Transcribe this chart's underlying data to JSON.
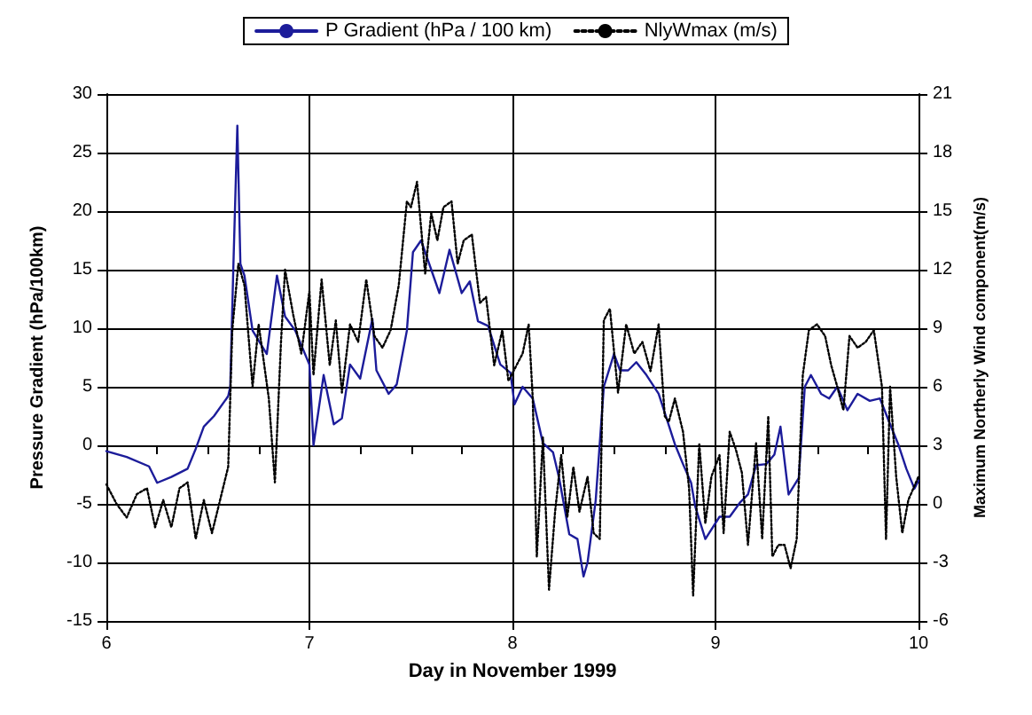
{
  "chart_data": {
    "type": "line",
    "xlabel": "Day in November 1999",
    "ylabel": "Pressure Gradient (hPa/100km)",
    "y2label": "Maximum Northerly Wind component(m/s)",
    "xlim": [
      6,
      10
    ],
    "xticks": [
      6,
      {
        "value": 6.25,
        "label": null
      },
      {
        "value": 6.5,
        "label": null
      },
      {
        "value": 6.75,
        "label": null
      },
      7,
      {
        "value": 7.25,
        "label": null
      },
      {
        "value": 7.5,
        "label": null
      },
      {
        "value": 7.75,
        "label": null
      },
      8,
      {
        "value": 8.25,
        "label": null
      },
      {
        "value": 8.5,
        "label": null
      },
      {
        "value": 8.75,
        "label": null
      },
      9,
      {
        "value": 9.25,
        "label": null
      },
      {
        "value": 9.5,
        "label": null
      },
      {
        "value": 9.75,
        "label": null
      },
      10
    ],
    "ylim": [
      -15,
      30
    ],
    "yticks": [
      -15,
      -10,
      -5,
      0,
      5,
      10,
      15,
      20,
      25,
      30
    ],
    "y2lim": [
      -6,
      21
    ],
    "y2ticks": [
      -6,
      -3,
      0,
      3,
      6,
      9,
      12,
      15,
      18,
      21
    ],
    "grid": true,
    "legend": "top",
    "marker": "none",
    "series": [
      {
        "name": "P Gradient (hPa / 100 km)",
        "color": "#1c1c9a",
        "line_style": "solid",
        "x": [
          6.0,
          6.1,
          6.21,
          6.25,
          6.32,
          6.4,
          6.44,
          6.48,
          6.53,
          6.6,
          6.61,
          6.625,
          6.645,
          6.66,
          6.68,
          6.72,
          6.79,
          6.84,
          6.88,
          6.93,
          7.0,
          7.02,
          7.07,
          7.12,
          7.16,
          7.2,
          7.25,
          7.31,
          7.33,
          7.39,
          7.43,
          7.48,
          7.51,
          7.55,
          7.6,
          7.64,
          7.69,
          7.75,
          7.79,
          7.83,
          7.88,
          7.94,
          7.99,
          8.01,
          8.05,
          8.1,
          8.15,
          8.2,
          8.23,
          8.28,
          8.32,
          8.35,
          8.37,
          8.41,
          8.45,
          8.5,
          8.53,
          8.57,
          8.61,
          8.66,
          8.72,
          8.8,
          8.84,
          8.88,
          8.9,
          8.95,
          9.02,
          9.07,
          9.12,
          9.16,
          9.2,
          9.25,
          9.29,
          9.32,
          9.36,
          9.41,
          9.44,
          9.47,
          9.52,
          9.56,
          9.6,
          9.65,
          9.7,
          9.76,
          9.81,
          9.86,
          9.9,
          9.94,
          9.98,
          10.0
        ],
        "values": [
          -0.5,
          -1,
          -1.8,
          -3.2,
          -2.7,
          -2,
          -0.3,
          1.6,
          2.5,
          4.2,
          5,
          15,
          27.3,
          15.5,
          14.5,
          9.8,
          7.8,
          14.5,
          11,
          9.8,
          6.9,
          0,
          6,
          1.8,
          2.3,
          6.9,
          5.7,
          10.8,
          6.4,
          4.4,
          5.2,
          9.8,
          16.5,
          17.5,
          15,
          13,
          16.7,
          13,
          14,
          10.6,
          10.2,
          6.9,
          6.2,
          3.5,
          5,
          4,
          0.2,
          -0.6,
          -2.8,
          -7.6,
          -8,
          -11.2,
          -10,
          -4.7,
          5,
          7.8,
          6.4,
          6.4,
          7.1,
          6,
          4.4,
          0.1,
          -1.6,
          -3.2,
          -5.2,
          -8,
          -6.1,
          -6.1,
          -4.9,
          -4.2,
          -1.7,
          -1.6,
          -0.8,
          1.6,
          -4.2,
          -2.8,
          5,
          6,
          4.4,
          4,
          5,
          3,
          4.4,
          3.8,
          4,
          1.8,
          0.1,
          -2,
          -3.7,
          -3
        ]
      },
      {
        "name": "NlyWmax (m/s)",
        "color": "#000000",
        "line_style": "dotted",
        "axis": "y2",
        "x": [
          6.0,
          6.05,
          6.1,
          6.15,
          6.2,
          6.24,
          6.28,
          6.32,
          6.36,
          6.4,
          6.44,
          6.48,
          6.52,
          6.56,
          6.6,
          6.62,
          6.65,
          6.68,
          6.72,
          6.75,
          6.8,
          6.83,
          6.86,
          6.88,
          6.92,
          6.96,
          7.0,
          7.02,
          7.06,
          7.1,
          7.13,
          7.16,
          7.2,
          7.24,
          7.28,
          7.32,
          7.36,
          7.4,
          7.44,
          7.48,
          7.5,
          7.53,
          7.57,
          7.6,
          7.63,
          7.66,
          7.7,
          7.73,
          7.76,
          7.8,
          7.84,
          7.87,
          7.91,
          7.95,
          7.98,
          8.02,
          8.05,
          8.08,
          8.1,
          8.12,
          8.15,
          8.18,
          8.21,
          8.24,
          8.27,
          8.3,
          8.33,
          8.37,
          8.4,
          8.43,
          8.45,
          8.48,
          8.52,
          8.56,
          8.6,
          8.64,
          8.68,
          8.72,
          8.75,
          8.77,
          8.8,
          8.84,
          8.87,
          8.89,
          8.92,
          8.95,
          8.98,
          9.02,
          9.04,
          9.07,
          9.1,
          9.13,
          9.16,
          9.2,
          9.23,
          9.26,
          9.28,
          9.31,
          9.34,
          9.37,
          9.4,
          9.43,
          9.46,
          9.5,
          9.54,
          9.57,
          9.6,
          9.63,
          9.66,
          9.7,
          9.74,
          9.78,
          9.82,
          9.84,
          9.86,
          9.89,
          9.92,
          9.95,
          10.0
        ],
        "values": [
          1,
          0,
          -0.7,
          0.5,
          0.8,
          -1.2,
          0.2,
          -1.2,
          0.8,
          1.1,
          -1.8,
          0.2,
          -1.5,
          0.2,
          1.9,
          8.9,
          12.3,
          11.2,
          6,
          9.2,
          5.4,
          1.1,
          8.3,
          12,
          9.7,
          7.7,
          10.9,
          6.6,
          11.5,
          7.1,
          9.4,
          5.7,
          9.2,
          8.3,
          11.5,
          8.6,
          8,
          8.9,
          11.2,
          15.5,
          15.2,
          16.5,
          11.8,
          14.9,
          13.5,
          15.2,
          15.5,
          12.3,
          13.5,
          13.8,
          10.3,
          10.6,
          7.1,
          8.9,
          6.3,
          7.1,
          7.7,
          9.2,
          5.4,
          -2.7,
          3.4,
          -4.4,
          -0.4,
          2.5,
          -0.7,
          1.9,
          -0.4,
          1.4,
          -1.5,
          -1.8,
          9.4,
          10,
          5.7,
          9.2,
          7.7,
          8.3,
          6.8,
          9.2,
          4.5,
          4.2,
          5.4,
          3.7,
          0.8,
          -4.7,
          3.1,
          -1,
          1.4,
          2.5,
          -1.5,
          3.7,
          2.8,
          1.6,
          -2.1,
          3.1,
          -1.8,
          4.5,
          -2.7,
          -2.1,
          -2.1,
          -3.3,
          -1.8,
          6.6,
          8.9,
          9.2,
          8.6,
          7.1,
          6,
          4.8,
          8.6,
          8,
          8.3,
          8.9,
          6,
          -1.8,
          6,
          1.4,
          -1.5,
          0.2,
          1.4
        ]
      }
    ]
  }
}
